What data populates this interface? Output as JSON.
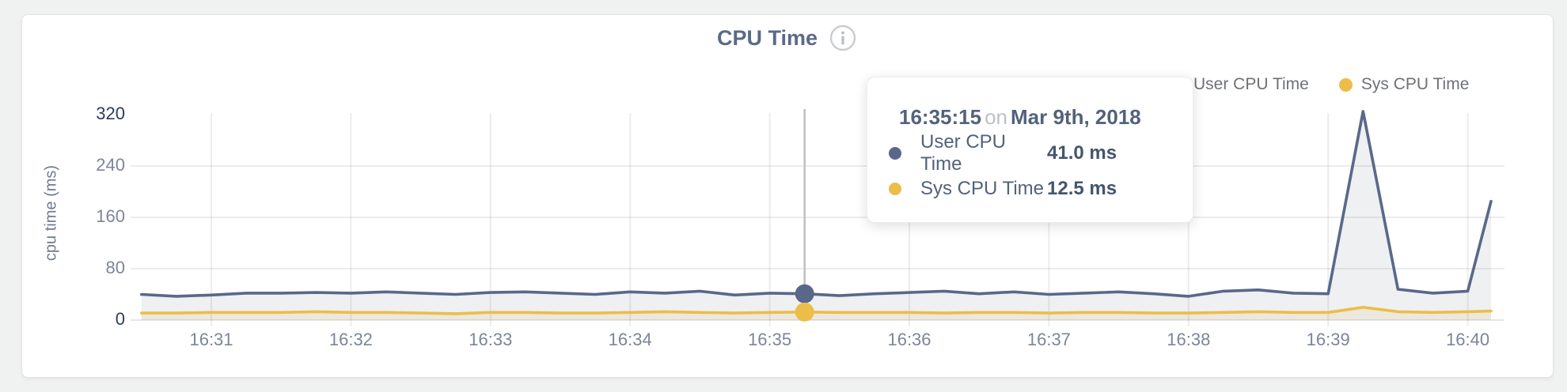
{
  "page": {
    "background": "#f0f1f1",
    "card_background": "#ffffff"
  },
  "header": {
    "title": "CPU Time",
    "info_icon": "info-circle-icon"
  },
  "legend": [
    {
      "label": "User CPU Time",
      "color": "#59688a"
    },
    {
      "label": "Sys CPU Time",
      "color": "#ecbd49"
    }
  ],
  "tooltip": {
    "time": "16:35:15",
    "connector": "on",
    "date": "Mar 9th, 2018",
    "rows": [
      {
        "label": "User CPU Time",
        "value": "41.0 ms",
        "color": "#59688a"
      },
      {
        "label": "Sys CPU Time",
        "value": "12.5 ms",
        "color": "#ecbd49"
      }
    ]
  },
  "chart_data": {
    "type": "area",
    "title": "CPU Time",
    "ylabel": "cpu time (ms)",
    "ylim": [
      0,
      320
    ],
    "yticks": [
      0,
      80,
      160,
      240,
      320
    ],
    "xticks": [
      "16:31",
      "16:32",
      "16:33",
      "16:34",
      "16:35",
      "16:36",
      "16:37",
      "16:38",
      "16:39",
      "16:40"
    ],
    "grid": true,
    "legend_position": "top-right",
    "x": [
      "16:30:30",
      "16:30:45",
      "16:31:00",
      "16:31:15",
      "16:31:30",
      "16:31:45",
      "16:32:00",
      "16:32:15",
      "16:32:30",
      "16:32:45",
      "16:33:00",
      "16:33:15",
      "16:33:30",
      "16:33:45",
      "16:34:00",
      "16:34:15",
      "16:34:30",
      "16:34:45",
      "16:35:00",
      "16:35:15",
      "16:35:30",
      "16:35:45",
      "16:36:00",
      "16:36:15",
      "16:36:30",
      "16:36:45",
      "16:37:00",
      "16:37:15",
      "16:37:30",
      "16:37:45",
      "16:38:00",
      "16:38:15",
      "16:38:30",
      "16:38:45",
      "16:39:00",
      "16:39:15",
      "16:39:30",
      "16:39:45",
      "16:40:00",
      "16:40:10"
    ],
    "series": [
      {
        "name": "User CPU Time",
        "color": "#59688a",
        "fill": "#eef0f2",
        "values": [
          40,
          37,
          39,
          42,
          42,
          43,
          42,
          44,
          42,
          40,
          43,
          44,
          42,
          40,
          44,
          42,
          45,
          39,
          42,
          41,
          38,
          41,
          43,
          45,
          41,
          44,
          40,
          42,
          44,
          41,
          37,
          45,
          47,
          42,
          41,
          325,
          48,
          42,
          45,
          185
        ]
      },
      {
        "name": "Sys CPU Time",
        "color": "#ecbd49",
        "fill": "#ece8dd",
        "values": [
          11,
          11,
          12,
          12,
          12,
          13,
          12,
          12,
          11,
          10,
          12,
          12,
          11,
          11,
          12,
          13,
          12,
          11,
          12,
          12.5,
          12,
          12,
          12,
          11,
          12,
          12,
          11,
          12,
          12,
          11,
          11,
          12,
          13,
          12,
          12,
          20,
          13,
          12,
          13,
          14
        ]
      }
    ],
    "hover": {
      "time": "16:35:15",
      "user_ms": 41.0,
      "sys_ms": 12.5
    }
  }
}
